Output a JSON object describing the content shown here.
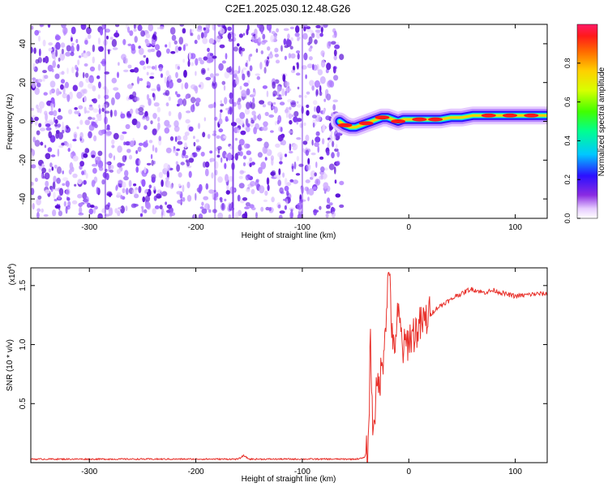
{
  "figure": {
    "title": "C2E1.2025.030.12.48.G26"
  },
  "chart_data": [
    {
      "type": "heatmap",
      "xlabel": "Height of straight line (km)",
      "ylabel": "Frequency (Hz)",
      "xlim": [
        -355,
        130
      ],
      "ylim": [
        -50,
        50
      ],
      "x_ticks": [
        -300,
        -200,
        -100,
        0,
        100
      ],
      "y_ticks": [
        -40,
        -20,
        0,
        20,
        40
      ],
      "noise_region_x": [
        -355,
        -63
      ],
      "signal_track": {
        "x": [
          -65,
          -60,
          -55,
          -50,
          -45,
          -40,
          -35,
          -30,
          -25,
          -20,
          -15,
          -10,
          -5,
          0,
          10,
          20,
          30,
          40,
          50,
          60,
          70,
          80,
          90,
          100,
          110,
          120,
          130
        ],
        "y": [
          0,
          -2,
          -3,
          -3,
          -2,
          -1,
          0,
          1,
          2,
          2,
          1,
          0,
          1,
          1,
          1,
          1,
          1,
          2,
          2,
          3,
          3,
          3,
          3,
          3,
          3,
          3,
          3
        ],
        "peak_amplitude_x": [
          -60,
          -40,
          -25,
          -10,
          10,
          25,
          75,
          95,
          115
        ]
      },
      "colorbar": {
        "label": "Normalized spectral amplitude",
        "range": [
          0,
          1
        ],
        "ticks": [
          "0.0",
          "0.2",
          "0.4",
          "0.6",
          "0.8"
        ],
        "tick_values": [
          0.0,
          0.2,
          0.4,
          0.6,
          0.8
        ]
      }
    },
    {
      "type": "line",
      "xlabel": "Height of straight line (km)",
      "ylabel": "SNR (10 * v/v)",
      "y_multiplier": "(x10",
      "y_multiplier_exp": "4",
      "y_multiplier_close": ")",
      "xlim": [
        -355,
        130
      ],
      "ylim": [
        0,
        1.65
      ],
      "x_ticks": [
        -300,
        -200,
        -100,
        0,
        100
      ],
      "y_ticks": [
        0.5,
        1.0,
        1.5
      ],
      "y_tick_labels": [
        "0.5",
        "1.0",
        "1.5"
      ],
      "series": [
        {
          "color": "#e8302a",
          "x": [
            -355,
            -250,
            -160,
            -155,
            -150,
            -100,
            -50,
            -42,
            -38,
            -36,
            -34,
            -30,
            -25,
            -20,
            -18,
            -15,
            -10,
            -5,
            0,
            5,
            10,
            15,
            20,
            25,
            30,
            35,
            40,
            45,
            50,
            55,
            60,
            70,
            80,
            90,
            100,
            110,
            120,
            130
          ],
          "y": [
            0.03,
            0.03,
            0.03,
            0.06,
            0.03,
            0.03,
            0.03,
            0.04,
            0.12,
            1.1,
            0.3,
            0.6,
            0.8,
            1.45,
            1.65,
            0.9,
            1.25,
            0.95,
            1.05,
            1.1,
            1.15,
            1.2,
            1.25,
            1.3,
            1.33,
            1.36,
            1.38,
            1.42,
            1.43,
            1.46,
            1.47,
            1.44,
            1.46,
            1.43,
            1.41,
            1.42,
            1.43,
            1.43
          ]
        }
      ]
    }
  ]
}
